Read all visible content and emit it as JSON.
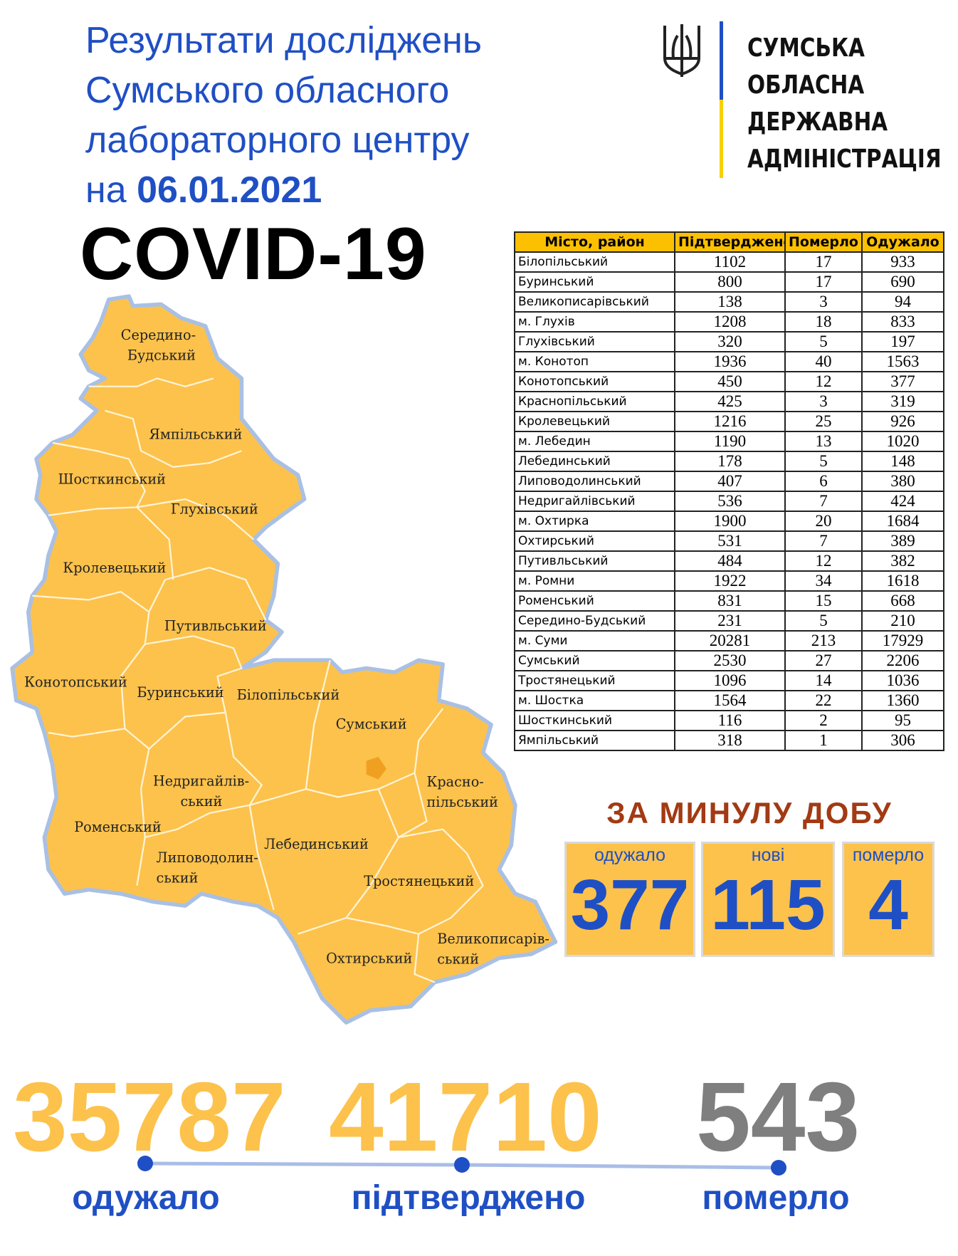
{
  "header": {
    "title_lines": [
      "Результати досліджень",
      "Сумського обласного",
      "лабораторного центру"
    ],
    "date_prefix": "на ",
    "date": "06.01.2021",
    "covid_label": "COVID-19"
  },
  "logo": {
    "icon": "trident-icon",
    "lines": [
      "СУМСЬКА",
      "ОБЛАСНА",
      "ДЕРЖАВНА",
      "АДМІНІСТРАЦІЯ"
    ],
    "colors": {
      "blue": "#1f4fc4",
      "yellow": "#f7d000"
    }
  },
  "table": {
    "headers": [
      "Місто, район",
      "Підтверджено",
      "Померло",
      "Одужало"
    ],
    "rows": [
      [
        "Білопільський",
        "1102",
        "17",
        "933"
      ],
      [
        "Буринський",
        "800",
        "17",
        "690"
      ],
      [
        "Великописарівський",
        "138",
        "3",
        "94"
      ],
      [
        "м. Глухів",
        "1208",
        "18",
        "833"
      ],
      [
        "Глухівський",
        "320",
        "5",
        "197"
      ],
      [
        "м. Конотоп",
        "1936",
        "40",
        "1563"
      ],
      [
        "Конотопський",
        "450",
        "12",
        "377"
      ],
      [
        "Краснопільський",
        "425",
        "3",
        "319"
      ],
      [
        "Кролевецький",
        "1216",
        "25",
        "926"
      ],
      [
        "м. Лебедин",
        "1190",
        "13",
        "1020"
      ],
      [
        "Лебединський",
        "178",
        "5",
        "148"
      ],
      [
        "Липоводолинський",
        "407",
        "6",
        "380"
      ],
      [
        "Недригайлівський",
        "536",
        "7",
        "424"
      ],
      [
        "м. Охтирка",
        "1900",
        "20",
        "1684"
      ],
      [
        "Охтирський",
        "531",
        "7",
        "389"
      ],
      [
        "Путивльський",
        "484",
        "12",
        "382"
      ],
      [
        "м. Ромни",
        "1922",
        "34",
        "1618"
      ],
      [
        "Роменський",
        "831",
        "15",
        "668"
      ],
      [
        "Середино-Будський",
        "231",
        "5",
        "210"
      ],
      [
        "м. Суми",
        "20281",
        "213",
        "17929"
      ],
      [
        "Сумський",
        "2530",
        "27",
        "2206"
      ],
      [
        "Тростянецький",
        "1096",
        "14",
        "1036"
      ],
      [
        "м. Шостка",
        "1564",
        "22",
        "1360"
      ],
      [
        "Шосткинський",
        "116",
        "2",
        "95"
      ],
      [
        "Ямпільський",
        "318",
        "1",
        "306"
      ]
    ]
  },
  "map": {
    "fill_color": "#fcc24c",
    "labels": [
      "Середино-",
      "Будський",
      "Ямпільський",
      "Шосткинський",
      "Глухівський",
      "Кролевецький",
      "Путивльський",
      "Конотопський",
      "Буринський",
      "Білопільський",
      "Сумський",
      "Недригайлів-",
      "ський",
      "Красно-",
      "пільський",
      "Роменський",
      "Липоводолин-",
      "ський",
      "Лебединський",
      "Тростянецький",
      "Великописарів-",
      "ський",
      "Охтирський"
    ]
  },
  "daily": {
    "title": "ЗА МИНУЛУ ДОБУ",
    "recovered_label": "одужало",
    "recovered": "377",
    "new_label": "нові",
    "new": "115",
    "died_label": "померло",
    "died": "4"
  },
  "totals": {
    "recovered": "35787",
    "recovered_label": "одужало",
    "confirmed": "41710",
    "confirmed_label": "підтверджено",
    "died": "543",
    "died_label": "померло",
    "colors": {
      "yellow": "#fcc24c",
      "gray": "#7f7f7f",
      "blue": "#1f4fc4"
    }
  }
}
